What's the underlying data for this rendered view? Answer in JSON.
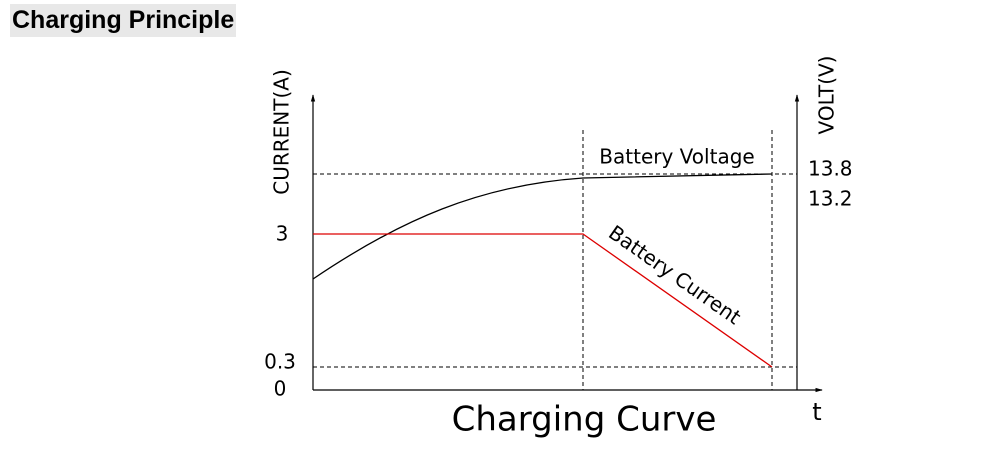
{
  "header": {
    "title": "Charging Principle"
  },
  "diagram": {
    "title": "Charging Curve",
    "left_axis": {
      "label": "CURRENT(A)",
      "ticks": [
        "3",
        "0.3",
        "0"
      ]
    },
    "right_axis": {
      "label": "VOLT(V)",
      "ticks": [
        "13.8",
        "13.2"
      ]
    },
    "x_axis": {
      "label": "t"
    },
    "curves": [
      "Battery Voltage",
      "Battery Current"
    ]
  }
}
